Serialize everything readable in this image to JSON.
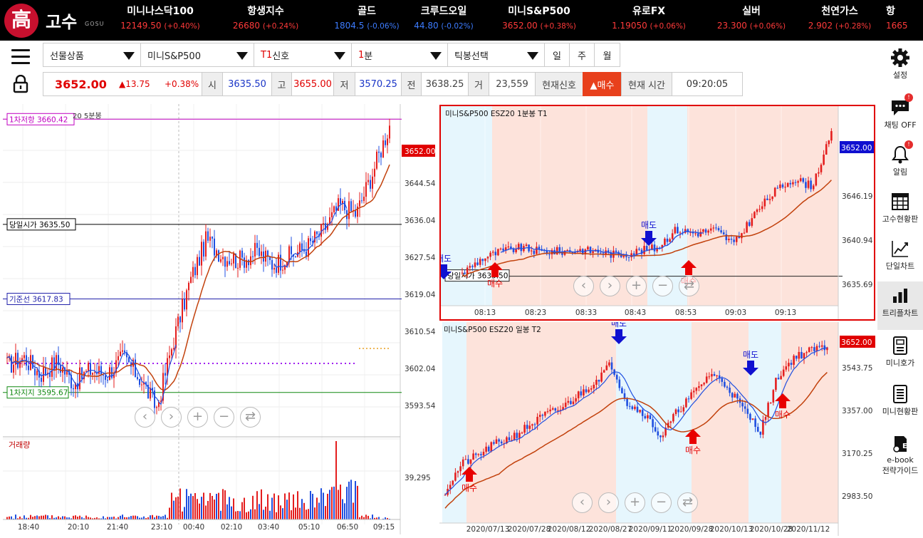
{
  "header": {
    "logo_char": "高",
    "logo_text": "고수",
    "logo_sub": "GOSU",
    "tickers": [
      {
        "name": "미니나스닥100",
        "value": "12149.50",
        "change": "(+0.40%)",
        "dir": "up"
      },
      {
        "name": "항생지수",
        "value": "26680",
        "change": "(+0.24%)",
        "dir": "up"
      },
      {
        "name": "골드",
        "value": "1804.5",
        "change": "(-0.06%)",
        "dir": "dn"
      },
      {
        "name": "크루드오일",
        "value": "44.80",
        "change": "(-0.02%)",
        "dir": "dn"
      },
      {
        "name": "미니S&P500",
        "value": "3652.00",
        "change": "(+0.38%)",
        "dir": "up"
      },
      {
        "name": "유로FX",
        "value": "1.19050",
        "change": "(+0.06%)",
        "dir": "up"
      },
      {
        "name": "실버",
        "value": "23.300",
        "change": "(+0.06%)",
        "dir": "up"
      },
      {
        "name": "천연가스",
        "value": "2.902",
        "change": "(+0.28%)",
        "dir": "up"
      },
      {
        "name": "항",
        "value": "1665",
        "change": "",
        "dir": "up"
      }
    ]
  },
  "toolbar": {
    "product_type": "선물상품",
    "product": "미니S&P500",
    "signal_prefix": "T1",
    "signal": "신호",
    "interval_prefix": "1",
    "interval": "분",
    "tick_select": "틱봉선택",
    "day": "일",
    "week": "주",
    "month": "월"
  },
  "quote": {
    "price": "3652.00",
    "change": "▲13.75",
    "change_pct": "+0.38%",
    "open_label": "시",
    "open": "3635.50",
    "high_label": "고",
    "high": "3655.00",
    "low_label": "저",
    "low": "3570.25",
    "prev_label": "전",
    "prev": "3638.25",
    "volume_label": "거",
    "volume": "23,559",
    "signal_label": "현재신호",
    "signal_value": "▲매수",
    "time_label": "현재 시간",
    "time": "09:20:05"
  },
  "sidebar": {
    "items": [
      {
        "label": "설정"
      },
      {
        "label": "채팅 OFF",
        "badge": "!"
      },
      {
        "label": "알림",
        "badge": "!"
      },
      {
        "label": "고수현황판"
      },
      {
        "label": "단일차트"
      },
      {
        "label": "트리플차트"
      },
      {
        "label": "미니호가"
      },
      {
        "label": "미니현황판"
      },
      {
        "label": "e-book",
        "label2": "전략가이드"
      }
    ]
  },
  "chart_data": [
    {
      "type": "candlestick",
      "title_left": "20  5분봉",
      "price_tag": "3652.00",
      "y_ticks": [
        "3644.54",
        "3636.04",
        "3627.54",
        "3619.04",
        "3610.54",
        "3602.04",
        "3593.54"
      ],
      "x_ticks": [
        "18:40",
        "20:10",
        "21:40",
        "23:10",
        "00:40",
        "02:10",
        "03:40",
        "05:10",
        "06:50",
        "09:15"
      ],
      "levels": [
        {
          "label": "1차저항 3660.42",
          "value": 3660.42,
          "color": "#c000c0"
        },
        {
          "label": "당일시가 3635.50",
          "value": 3635.5,
          "color": "#000000"
        },
        {
          "label": "기준선 3617.83",
          "value": 3617.83,
          "color": "#2222aa"
        },
        {
          "label": "1차지지 3595.67",
          "value": 3595.67,
          "color": "#118811"
        }
      ],
      "volume_label": "거래량",
      "volume_tick": "39,295",
      "ylim": [
        3586,
        3663
      ]
    },
    {
      "type": "candlestick",
      "title": "미니S&P500  ESZ20  1분봉  T1",
      "price_tag": "3652.00",
      "y_ticks": [
        "3646.19",
        "3640.94",
        "3635.69"
      ],
      "x_ticks": [
        "08:13",
        "08:23",
        "08:33",
        "08:43",
        "08:53",
        "09:03",
        "09:13"
      ],
      "open_line_label": "당일시가 3635.50",
      "signals": [
        {
          "label": "매도",
          "type": "sell"
        },
        {
          "label": "매도",
          "type": "sell"
        },
        {
          "label": "매수",
          "type": "buy"
        }
      ],
      "ylim": [
        3633.5,
        3657
      ]
    },
    {
      "type": "candlestick",
      "title": "미니S&P500  ESZ20  일봉  T2",
      "price_tag": "3652.00",
      "y_ticks": [
        "3543.75",
        "3357.00",
        "3170.25",
        "2983.50"
      ],
      "x_ticks": [
        "2020/07/13",
        "2020/07/28",
        "2020/08/12",
        "2020/08/27",
        "2020/09/11",
        "2020/09/28",
        "2020/10/13",
        "2020/10/28",
        "2020/11/12"
      ],
      "signals": [
        {
          "label": "매수",
          "type": "buy"
        },
        {
          "label": "매도",
          "type": "sell"
        },
        {
          "label": "매수",
          "type": "buy"
        },
        {
          "label": "매도",
          "type": "sell"
        },
        {
          "label": "매수",
          "type": "buy"
        }
      ],
      "ylim": [
        2900,
        3700
      ]
    }
  ]
}
